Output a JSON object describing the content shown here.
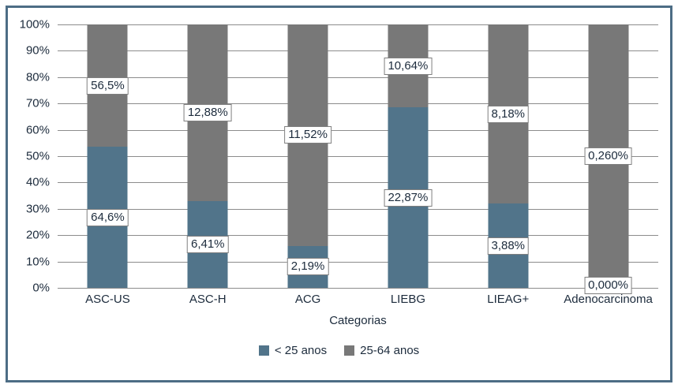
{
  "colors": {
    "frame_border": "#4d6d85",
    "grid": "#8c8c8c",
    "text": "#1c2b3c",
    "label_bg": "#ffffff",
    "label_border": "#7f7f7f",
    "series_blue": "#51748a",
    "series_gray": "#787878"
  },
  "chart_data": {
    "type": "bar",
    "stacked": true,
    "stacked_100_percent": true,
    "title": "",
    "xlabel": "Categorias",
    "ylabel": "",
    "ylim": [
      0,
      100
    ],
    "grid": true,
    "legend_position": "bottom",
    "y_ticks": [
      "0%",
      "10%",
      "20%",
      "30%",
      "40%",
      "50%",
      "60%",
      "70%",
      "80%",
      "90%",
      "100%"
    ],
    "categories": [
      "ASC-US",
      "ASC-H",
      "ACG",
      "LIEBG",
      "LIEAG+",
      "Adenocarcinoma"
    ],
    "series": [
      {
        "name": "< 25 anos",
        "color": "#51748a",
        "segment_heights_pct": [
          53.5,
          33,
          16,
          68.5,
          32,
          0
        ],
        "data_labels": [
          "64,6%",
          "6,41%",
          "2,19%",
          "22,87%",
          "3,88%",
          "0,000%"
        ]
      },
      {
        "name": "25-64 anos",
        "color": "#787878",
        "segment_heights_pct": [
          46.5,
          67,
          84,
          31.5,
          68,
          100
        ],
        "data_labels": [
          "56,5%",
          "12,88%",
          "11,52%",
          "10,64%",
          "8,18%",
          "0,260%"
        ]
      }
    ]
  }
}
